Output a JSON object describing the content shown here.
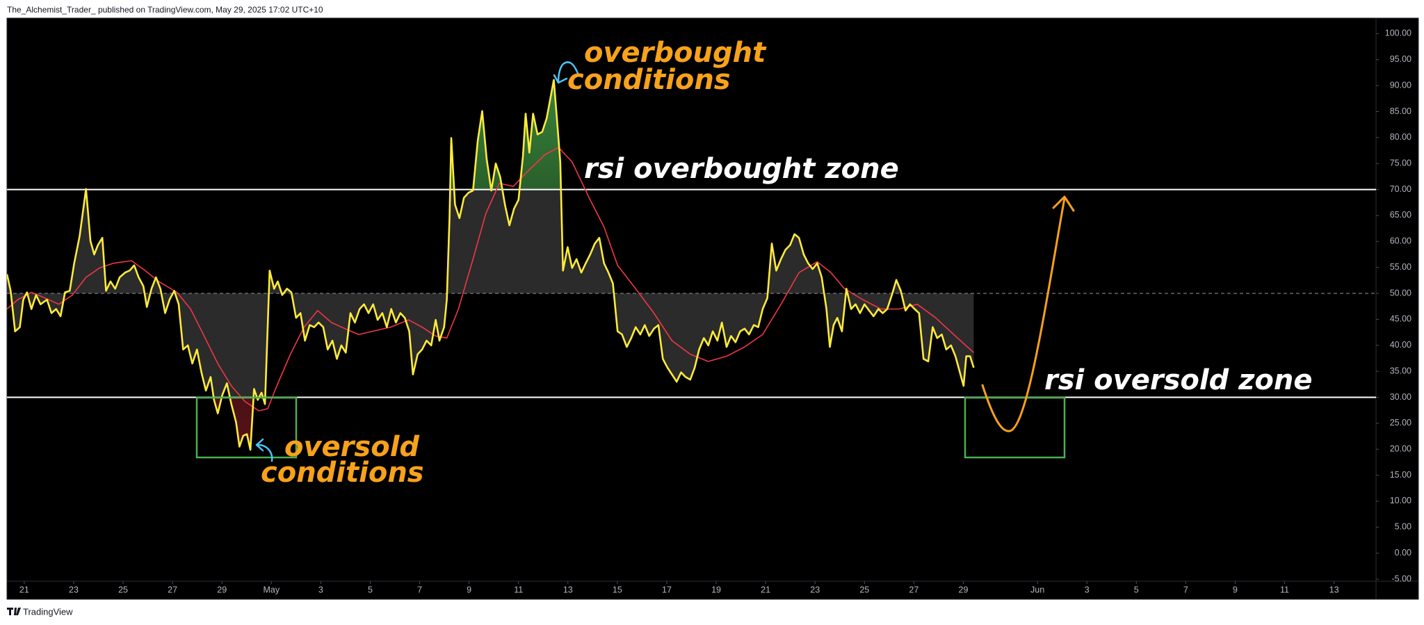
{
  "page": {
    "header": "The_Alchemist_Trader_ published on TradingView.com, May 29, 2025 17:02 UTC+10",
    "brand": "TradingView"
  },
  "chart_data": {
    "type": "line",
    "xlim": [
      20.3,
      75.7
    ],
    "ylim": [
      -5.4,
      103
    ],
    "xticks": [
      21,
      23,
      25,
      27,
      29,
      {
        "value": 31,
        "label": "May"
      },
      {
        "value": 33,
        "label": "3"
      },
      {
        "value": 35,
        "label": "5"
      },
      {
        "value": 37,
        "label": "7"
      },
      {
        "value": 39,
        "label": "9"
      },
      {
        "value": 41,
        "label": "11"
      },
      {
        "value": 43,
        "label": "13"
      },
      {
        "value": 45,
        "label": "15"
      },
      {
        "value": 47,
        "label": "17"
      },
      {
        "value": 49,
        "label": "19"
      },
      {
        "value": 51,
        "label": "21"
      },
      {
        "value": 53,
        "label": "23"
      },
      {
        "value": 55,
        "label": "25"
      },
      {
        "value": 57,
        "label": "27"
      },
      {
        "value": 59,
        "label": "29"
      },
      {
        "value": 62,
        "label": "Jun"
      },
      {
        "value": 64,
        "label": "3"
      },
      {
        "value": 66,
        "label": "5"
      },
      {
        "value": 68,
        "label": "7"
      },
      {
        "value": 70,
        "label": "9"
      },
      {
        "value": 72,
        "label": "11"
      },
      {
        "value": 74,
        "label": "13"
      }
    ],
    "yticks": [
      {
        "value": 100,
        "label": "100.00"
      },
      {
        "value": 95,
        "label": "95.00"
      },
      {
        "value": 90,
        "label": "90.00"
      },
      {
        "value": 85,
        "label": "85.00"
      },
      {
        "value": 80,
        "label": "80.00"
      },
      {
        "value": 75,
        "label": "75.00"
      },
      {
        "value": 70,
        "label": "70.00"
      },
      {
        "value": 65,
        "label": "65.00"
      },
      {
        "value": 60,
        "label": "60.00"
      },
      {
        "value": 55,
        "label": "55.00"
      },
      {
        "value": 50,
        "label": "50.00"
      },
      {
        "value": 45,
        "label": "45.00"
      },
      {
        "value": 40,
        "label": "40.00"
      },
      {
        "value": 35,
        "label": "35.00"
      },
      {
        "value": 30,
        "label": "30.00"
      },
      {
        "value": 25,
        "label": "25.00"
      },
      {
        "value": 20,
        "label": "20.00"
      },
      {
        "value": 15,
        "label": "15.00"
      },
      {
        "value": 10,
        "label": "10.00"
      },
      {
        "value": 5,
        "label": "5.00"
      },
      {
        "value": 0,
        "label": "0.00"
      },
      {
        "value": -5,
        "label": "-5.00"
      }
    ],
    "hlines": [
      {
        "value": 70,
        "color": "#ffffff",
        "dashed": false
      },
      {
        "value": 50,
        "color": "#787b86",
        "dashed": true
      },
      {
        "value": 30,
        "color": "#ffffff",
        "dashed": false
      }
    ],
    "series": [
      {
        "color": "#ffeb3b",
        "x": [
          20.3,
          20.45,
          20.63,
          20.82,
          20.96,
          21.11,
          21.29,
          21.48,
          21.66,
          21.92,
          22.1,
          22.29,
          22.47,
          22.65,
          22.84,
          23.02,
          23.24,
          23.5,
          23.68,
          23.83,
          23.98,
          24.16,
          24.31,
          24.49,
          24.68,
          24.86,
          25.08,
          25.26,
          25.45,
          25.63,
          25.82,
          25.96,
          26.15,
          26.33,
          26.51,
          26.7,
          26.88,
          27.07,
          27.25,
          27.43,
          27.62,
          27.8,
          27.99,
          28.17,
          28.35,
          28.54,
          28.68,
          28.83,
          29.01,
          29.2,
          29.38,
          29.57,
          29.71,
          29.86,
          30.01,
          30.15,
          30.3,
          30.45,
          30.6,
          30.74,
          30.93,
          31.11,
          31.26,
          31.44,
          31.63,
          31.81,
          32.0,
          32.18,
          32.36,
          32.55,
          32.73,
          32.91,
          33.1,
          33.28,
          33.47,
          33.65,
          33.83,
          34.01,
          34.2,
          34.38,
          34.57,
          34.75,
          34.93,
          35.12,
          35.3,
          35.49,
          35.67,
          35.85,
          36.04,
          36.22,
          36.4,
          36.58,
          36.73,
          36.92,
          37.1,
          37.28,
          37.47,
          37.65,
          37.8,
          37.99,
          38.1,
          38.21,
          38.28,
          38.43,
          38.61,
          38.79,
          38.98,
          39.16,
          39.35,
          39.53,
          39.71,
          39.9,
          40.08,
          40.26,
          40.45,
          40.63,
          40.82,
          41.0,
          41.18,
          41.29,
          41.44,
          41.59,
          41.77,
          41.96,
          42.14,
          42.29,
          42.43,
          42.58,
          42.69,
          42.8,
          42.99,
          43.17,
          43.35,
          43.54,
          43.72,
          43.9,
          44.09,
          44.27,
          44.46,
          44.64,
          44.82,
          45.01,
          45.19,
          45.38,
          45.56,
          45.74,
          45.93,
          46.11,
          46.29,
          46.48,
          46.66,
          46.84,
          47.03,
          47.21,
          47.4,
          47.58,
          47.76,
          47.95,
          48.13,
          48.31,
          48.5,
          48.68,
          48.86,
          49.05,
          49.23,
          49.42,
          49.6,
          49.78,
          49.97,
          50.15,
          50.33,
          50.52,
          50.7,
          50.88,
          51.07,
          51.25,
          51.43,
          51.62,
          51.8,
          51.99,
          52.17,
          52.35,
          52.54,
          52.72,
          52.9,
          53.09,
          53.27,
          53.46,
          53.6,
          53.75,
          53.9,
          54.09,
          54.27,
          54.46,
          54.64,
          54.82,
          55.0,
          55.19,
          55.37,
          55.56,
          55.74,
          55.92,
          56.11,
          56.29,
          56.47,
          56.66,
          56.84,
          57.03,
          57.21,
          57.39,
          57.58,
          57.76,
          57.94,
          58.13,
          58.31,
          58.5,
          58.68,
          58.86,
          59.01,
          59.12,
          59.27,
          59.42
        ],
        "values": [
          53.7,
          50.5,
          42.7,
          43.5,
          48.8,
          50.2,
          47.0,
          49.7,
          47.9,
          48.8,
          46.2,
          47.0,
          45.6,
          50.2,
          50.5,
          55.8,
          61.0,
          70.1,
          60.1,
          57.5,
          59.3,
          60.7,
          50.5,
          52.3,
          50.9,
          53.1,
          54.0,
          54.4,
          55.4,
          53.1,
          51.4,
          47.4,
          50.9,
          53.1,
          50.9,
          46.2,
          48.8,
          50.5,
          47.9,
          39.2,
          40.0,
          36.5,
          39.2,
          34.8,
          31.3,
          33.9,
          29.5,
          26.9,
          30.4,
          32.7,
          28.7,
          25.2,
          20.5,
          22.6,
          22.9,
          19.9,
          31.6,
          29.5,
          30.9,
          28.7,
          54.4,
          50.9,
          52.3,
          49.7,
          50.9,
          50.2,
          45.3,
          46.2,
          40.9,
          43.9,
          43.5,
          44.4,
          43.5,
          39.2,
          40.9,
          37.4,
          40.0,
          38.6,
          46.2,
          44.4,
          47.0,
          47.9,
          46.2,
          47.9,
          44.9,
          46.2,
          43.5,
          47.0,
          44.4,
          46.2,
          45.3,
          42.7,
          34.4,
          38.3,
          39.2,
          40.9,
          40.0,
          44.9,
          40.9,
          43.5,
          48.8,
          64.5,
          79.9,
          67.1,
          64.5,
          68.4,
          69.4,
          69.8,
          79.4,
          85.1,
          75.9,
          69.8,
          75.0,
          72.4,
          67.1,
          63.1,
          66.3,
          68.0,
          76.4,
          84.6,
          77.1,
          84.6,
          80.6,
          81.1,
          83.7,
          87.6,
          91.1,
          82.0,
          75.3,
          54.4,
          58.9,
          54.9,
          56.6,
          54.0,
          55.8,
          57.5,
          59.6,
          60.7,
          55.8,
          54.0,
          51.9,
          42.7,
          42.1,
          39.7,
          41.4,
          43.5,
          42.1,
          43.9,
          41.8,
          43.2,
          43.9,
          37.4,
          35.7,
          34.4,
          33.0,
          34.8,
          33.9,
          33.4,
          35.7,
          39.2,
          41.4,
          40.0,
          42.7,
          40.9,
          44.4,
          39.7,
          41.8,
          40.6,
          42.7,
          43.2,
          42.1,
          43.9,
          43.5,
          47.0,
          49.1,
          59.6,
          54.4,
          56.6,
          58.4,
          59.3,
          61.4,
          60.7,
          57.5,
          55.8,
          54.7,
          55.8,
          53.1,
          47.0,
          39.7,
          43.9,
          45.3,
          42.7,
          50.9,
          47.0,
          47.9,
          46.2,
          47.9,
          46.7,
          45.6,
          47.0,
          46.2,
          47.0,
          49.7,
          52.6,
          50.5,
          46.7,
          47.9,
          47.0,
          46.2,
          37.4,
          36.9,
          43.5,
          41.4,
          42.1,
          39.2,
          40.0,
          37.9,
          34.8,
          32.2,
          37.9,
          37.9,
          35.7
        ]
      },
      {
        "color": "#f23645",
        "x": [
          20.3,
          20.74,
          21.29,
          21.85,
          22.4,
          22.95,
          23.5,
          24.05,
          24.6,
          25.34,
          25.89,
          26.44,
          27.18,
          27.73,
          28.28,
          28.83,
          29.38,
          29.93,
          30.49,
          30.85,
          31.22,
          31.77,
          32.32,
          32.87,
          33.43,
          33.98,
          34.53,
          35.08,
          35.82,
          36.55,
          37.1,
          37.65,
          38.1,
          38.57,
          39.13,
          39.68,
          40.23,
          40.79,
          41.33,
          42.07,
          42.62,
          43.17,
          43.9,
          44.46,
          45.01,
          45.74,
          46.48,
          47.21,
          47.95,
          48.68,
          49.42,
          50.15,
          50.88,
          51.62,
          52.35,
          53.09,
          53.64,
          54.19,
          54.93,
          55.67,
          56.4,
          57.14,
          57.88,
          58.61,
          59.42
        ],
        "values": [
          47.0,
          48.8,
          50.2,
          49.1,
          47.9,
          49.7,
          53.1,
          54.9,
          55.8,
          56.3,
          54.4,
          52.3,
          50.2,
          47.0,
          41.8,
          36.5,
          32.2,
          29.2,
          27.4,
          27.8,
          32.2,
          38.3,
          43.5,
          46.7,
          44.4,
          43.2,
          42.1,
          42.7,
          43.5,
          44.9,
          43.5,
          41.8,
          41.4,
          47.0,
          56.1,
          65.4,
          71.2,
          70.6,
          73.3,
          76.7,
          78.1,
          75.3,
          68.0,
          62.8,
          55.4,
          50.9,
          46.2,
          40.9,
          38.3,
          36.9,
          37.9,
          39.7,
          42.1,
          47.9,
          54.0,
          56.1,
          54.0,
          50.9,
          48.8,
          47.0,
          47.0,
          47.9,
          45.3,
          42.1,
          38.6
        ]
      }
    ],
    "annotations": [
      {
        "lines": [
          "overbought",
          "conditions"
        ],
        "color": "#f7a21b"
      },
      {
        "lines": [
          "rsi overbought zone"
        ],
        "color": "#ffffff"
      },
      {
        "lines": [
          "oversold",
          "conditions"
        ],
        "color": "#f7a21b"
      },
      {
        "lines": [
          "rsi oversold zone"
        ],
        "color": "#ffffff"
      }
    ]
  }
}
